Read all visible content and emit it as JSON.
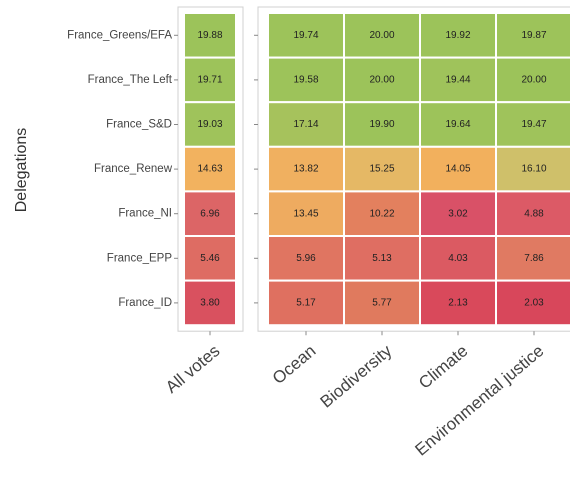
{
  "chart_data": {
    "type": "heatmap",
    "ylabel": "Delegations",
    "rows": [
      "France_Greens/EFA",
      "France_The Left",
      "France_S&D",
      "France_Renew",
      "France_NI",
      "France_EPP",
      "France_ID"
    ],
    "panels": [
      {
        "columns": [
          "All votes"
        ],
        "values": [
          [
            19.88
          ],
          [
            19.71
          ],
          [
            19.03
          ],
          [
            14.63
          ],
          [
            6.96
          ],
          [
            5.46
          ],
          [
            3.8
          ]
        ],
        "value_labels": [
          [
            "19.88"
          ],
          [
            "19.71"
          ],
          [
            "19.03"
          ],
          [
            "14.63"
          ],
          [
            "6.96"
          ],
          [
            "5.46"
          ],
          [
            "3.80"
          ]
        ],
        "colors": [
          [
            "#9cc35a"
          ],
          [
            "#9dc35a"
          ],
          [
            "#9fc35b"
          ],
          [
            "#f2b25f"
          ],
          [
            "#dc6566"
          ],
          [
            "#de6c63"
          ],
          [
            "#d9515f"
          ]
        ]
      },
      {
        "columns": [
          "Ocean",
          "Biodiversity",
          "Climate",
          "Environmental justice"
        ],
        "values": [
          [
            19.74,
            20,
            19.92,
            19.87
          ],
          [
            19.58,
            20,
            19.44,
            20
          ],
          [
            17.14,
            19.9,
            19.64,
            19.47
          ],
          [
            13.82,
            15.25,
            14.05,
            16.1
          ],
          [
            13.45,
            10.22,
            3.02,
            4.88
          ],
          [
            5.96,
            5.13,
            4.03,
            7.86
          ],
          [
            5.17,
            5.77,
            2.13,
            2.03
          ]
        ],
        "value_labels": [
          [
            "19.74",
            "20.00",
            "19.92",
            "19.87"
          ],
          [
            "19.58",
            "20.00",
            "19.44",
            "20.00"
          ],
          [
            "17.14",
            "19.90",
            "19.64",
            "19.47"
          ],
          [
            "13.82",
            "15.25",
            "14.05",
            "16.10"
          ],
          [
            "13.45",
            "10.22",
            "3.02",
            "4.88"
          ],
          [
            "5.96",
            "5.13",
            "4.03",
            "7.86"
          ],
          [
            "5.17",
            "5.77",
            "2.13",
            "2.03"
          ]
        ],
        "colors": [
          [
            "#9dc35a",
            "#9cc35a",
            "#9cc35a",
            "#9dc35a"
          ],
          [
            "#9dc35a",
            "#9cc35a",
            "#9fc35b",
            "#9cc35a"
          ],
          [
            "#a6c25c",
            "#9cc35a",
            "#9dc35a",
            "#9fc35b"
          ],
          [
            "#f0b060",
            "#e5b865",
            "#f2b05d",
            "#cfc06a"
          ],
          [
            "#eeab60",
            "#e3805e",
            "#d95167",
            "#dc5a66"
          ],
          [
            "#e07561",
            "#df6e62",
            "#db5a62",
            "#e07a62"
          ],
          [
            "#df7060",
            "#e07a5e",
            "#d9495b",
            "#d8475b"
          ]
        ]
      }
    ]
  }
}
